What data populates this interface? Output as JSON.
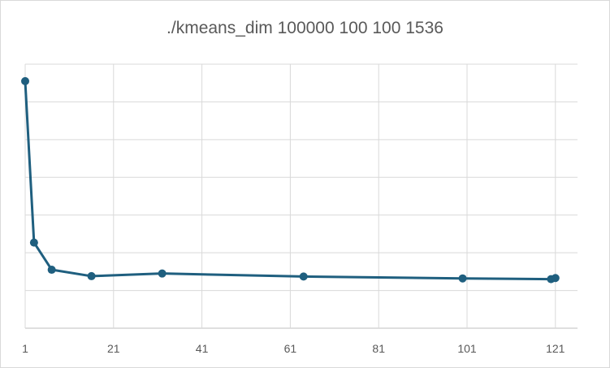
{
  "chart_data": {
    "type": "scatter",
    "title": "./kmeans_dim 100000 100 100 1536",
    "xlabel": "",
    "ylabel": "",
    "x_ticks": [
      1,
      21,
      41,
      61,
      81,
      101,
      121
    ],
    "xlim": [
      1,
      126
    ],
    "ylim": [
      0,
      7
    ],
    "y_tick_labels_shown": false,
    "grid": true,
    "legend": "none",
    "series": [
      {
        "color": "#1f5f7f",
        "points": [
          {
            "x": 1,
            "y": 6.55
          },
          {
            "x": 3,
            "y": 2.27
          },
          {
            "x": 7,
            "y": 1.55
          },
          {
            "x": 16,
            "y": 1.38
          },
          {
            "x": 32,
            "y": 1.45
          },
          {
            "x": 64,
            "y": 1.37
          },
          {
            "x": 100,
            "y": 1.32
          },
          {
            "x": 120,
            "y": 1.3
          },
          {
            "x": 121,
            "y": 1.33
          }
        ]
      }
    ]
  }
}
